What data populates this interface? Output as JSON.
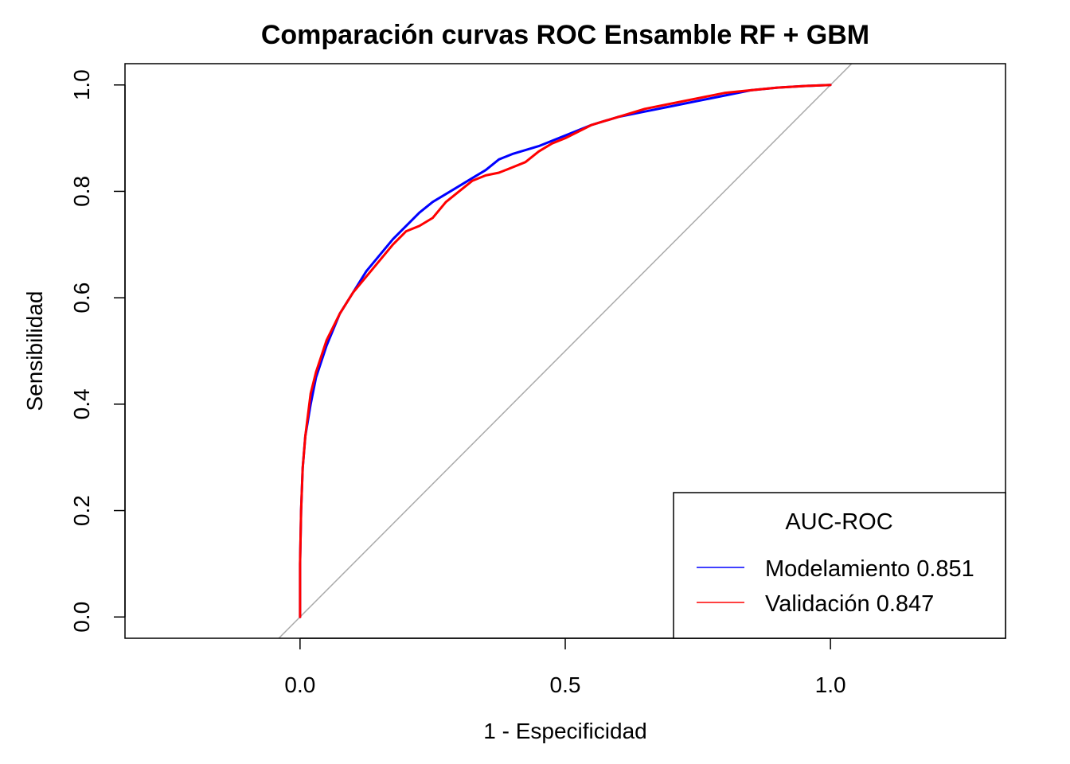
{
  "chart_data": {
    "type": "line",
    "title": "Comparación curvas ROC Ensamble RF + GBM",
    "xlabel": "1 - Especificidad",
    "ylabel": "Sensibilidad",
    "xlim": [
      -0.33,
      1.33
    ],
    "ylim": [
      -0.04,
      1.04
    ],
    "x_ticks": [
      0.0,
      0.5,
      1.0
    ],
    "x_tick_labels": [
      "0.0",
      "0.5",
      "1.0"
    ],
    "y_ticks": [
      0.0,
      0.2,
      0.4,
      0.6,
      0.8,
      1.0
    ],
    "y_tick_labels": [
      "0.0",
      "0.2",
      "0.4",
      "0.6",
      "0.8",
      "1.0"
    ],
    "grid": false,
    "legend": {
      "title": "AUC-ROC",
      "position": "bottom-right",
      "entries": [
        {
          "label": "Modelamiento 0.851",
          "color": "#0000ff"
        },
        {
          "label": "Validación 0.847",
          "color": "#ff0000"
        }
      ]
    },
    "reference_line": {
      "intercept": 0,
      "slope": 1,
      "color": "#aaaaaa"
    },
    "series": [
      {
        "color": "#0000ff",
        "points": [
          [
            0.0,
            0.0
          ],
          [
            0.0,
            0.1
          ],
          [
            0.002,
            0.2
          ],
          [
            0.005,
            0.28
          ],
          [
            0.01,
            0.34
          ],
          [
            0.02,
            0.4
          ],
          [
            0.03,
            0.45
          ],
          [
            0.05,
            0.51
          ],
          [
            0.075,
            0.57
          ],
          [
            0.1,
            0.61
          ],
          [
            0.125,
            0.65
          ],
          [
            0.15,
            0.68
          ],
          [
            0.175,
            0.71
          ],
          [
            0.2,
            0.735
          ],
          [
            0.225,
            0.76
          ],
          [
            0.25,
            0.78
          ],
          [
            0.275,
            0.795
          ],
          [
            0.3,
            0.81
          ],
          [
            0.325,
            0.825
          ],
          [
            0.35,
            0.84
          ],
          [
            0.375,
            0.86
          ],
          [
            0.4,
            0.87
          ],
          [
            0.45,
            0.885
          ],
          [
            0.5,
            0.905
          ],
          [
            0.55,
            0.925
          ],
          [
            0.6,
            0.94
          ],
          [
            0.65,
            0.95
          ],
          [
            0.7,
            0.96
          ],
          [
            0.75,
            0.97
          ],
          [
            0.8,
            0.98
          ],
          [
            0.85,
            0.99
          ],
          [
            0.9,
            0.995
          ],
          [
            0.95,
            0.998
          ],
          [
            1.0,
            1.0
          ]
        ]
      },
      {
        "color": "#ff0000",
        "points": [
          [
            0.0,
            0.0
          ],
          [
            0.0,
            0.1
          ],
          [
            0.002,
            0.2
          ],
          [
            0.005,
            0.28
          ],
          [
            0.01,
            0.34
          ],
          [
            0.02,
            0.42
          ],
          [
            0.03,
            0.46
          ],
          [
            0.05,
            0.52
          ],
          [
            0.075,
            0.57
          ],
          [
            0.1,
            0.61
          ],
          [
            0.125,
            0.64
          ],
          [
            0.15,
            0.67
          ],
          [
            0.175,
            0.7
          ],
          [
            0.2,
            0.725
          ],
          [
            0.225,
            0.735
          ],
          [
            0.25,
            0.75
          ],
          [
            0.275,
            0.78
          ],
          [
            0.3,
            0.8
          ],
          [
            0.325,
            0.82
          ],
          [
            0.35,
            0.83
          ],
          [
            0.375,
            0.835
          ],
          [
            0.4,
            0.845
          ],
          [
            0.425,
            0.855
          ],
          [
            0.45,
            0.875
          ],
          [
            0.475,
            0.89
          ],
          [
            0.5,
            0.9
          ],
          [
            0.55,
            0.925
          ],
          [
            0.6,
            0.94
          ],
          [
            0.65,
            0.955
          ],
          [
            0.7,
            0.965
          ],
          [
            0.75,
            0.975
          ],
          [
            0.8,
            0.985
          ],
          [
            0.85,
            0.99
          ],
          [
            0.9,
            0.995
          ],
          [
            0.95,
            0.998
          ],
          [
            1.0,
            1.0
          ]
        ]
      }
    ]
  }
}
